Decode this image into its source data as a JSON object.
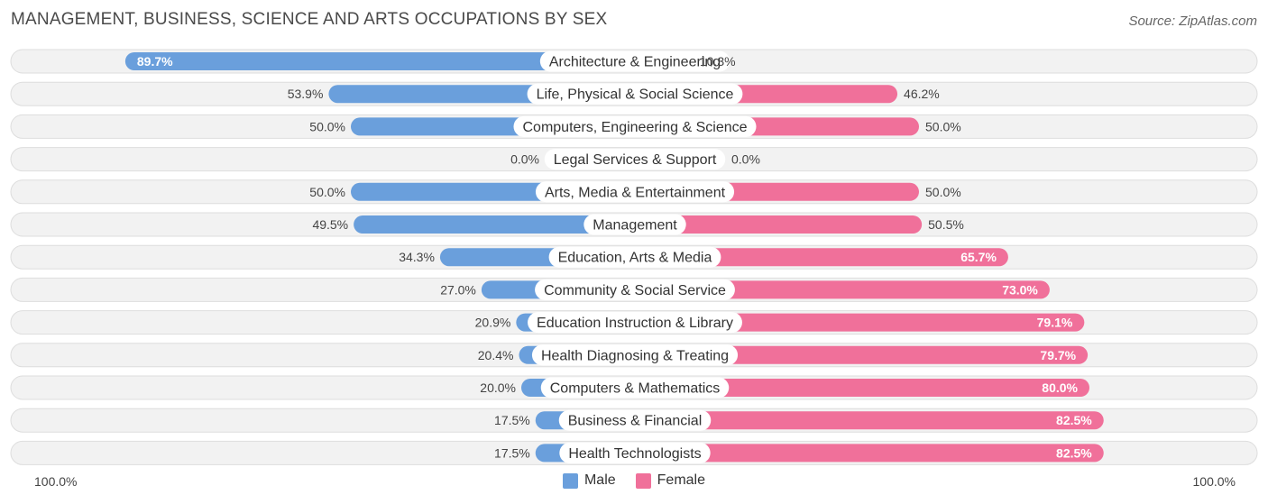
{
  "header": {
    "title": "MANAGEMENT, BUSINESS, SCIENCE AND ARTS OCCUPATIONS BY SEX",
    "source": "Source: ZipAtlas.com"
  },
  "axis": {
    "left_label": "100.0%",
    "right_label": "100.0%"
  },
  "legend": {
    "male": "Male",
    "female": "Female"
  },
  "colors": {
    "male": "#6a9fdc",
    "male_light": "#a9c6ec",
    "female": "#f0709a",
    "female_light": "#f7a9c3",
    "row_bg": "#f2f2f2",
    "row_border": "#dddddd"
  },
  "chart_data": {
    "type": "bar",
    "orientation": "horizontal-diverging",
    "title": "MANAGEMENT, BUSINESS, SCIENCE AND ARTS OCCUPATIONS BY SEX",
    "xlim": [
      -100,
      100
    ],
    "legend_position": "bottom-center",
    "categories": [
      "Architecture & Engineering",
      "Life, Physical & Social Science",
      "Computers, Engineering & Science",
      "Legal Services & Support",
      "Arts, Media & Entertainment",
      "Management",
      "Education, Arts & Media",
      "Community & Social Service",
      "Education Instruction & Library",
      "Health Diagnosing & Treating",
      "Computers & Mathematics",
      "Business & Financial",
      "Health Technologists"
    ],
    "series": [
      {
        "name": "Male",
        "values": [
          89.7,
          53.9,
          50.0,
          0.0,
          50.0,
          49.5,
          34.3,
          27.0,
          20.9,
          20.4,
          20.0,
          17.5,
          17.5
        ],
        "labels": [
          "89.7%",
          "53.9%",
          "50.0%",
          "0.0%",
          "50.0%",
          "49.5%",
          "34.3%",
          "27.0%",
          "20.9%",
          "20.4%",
          "20.0%",
          "17.5%",
          "17.5%"
        ]
      },
      {
        "name": "Female",
        "values": [
          10.3,
          46.2,
          50.0,
          0.0,
          50.0,
          50.5,
          65.7,
          73.0,
          79.1,
          79.7,
          80.0,
          82.5,
          82.5
        ],
        "labels": [
          "10.3%",
          "46.2%",
          "50.0%",
          "0.0%",
          "50.0%",
          "50.5%",
          "65.7%",
          "73.0%",
          "79.1%",
          "79.7%",
          "80.0%",
          "82.5%",
          "82.5%"
        ]
      }
    ]
  }
}
